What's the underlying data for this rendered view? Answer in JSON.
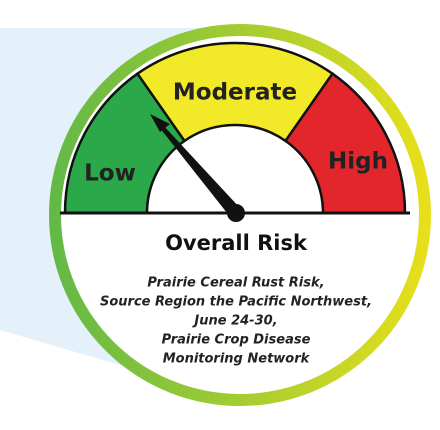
{
  "gauge": {
    "labels": {
      "low": "Low",
      "moderate": "Moderate",
      "high": "High"
    },
    "title": "Overall Risk"
  },
  "caption": [
    "Prairie Cereal Rust Risk,",
    "Source Region the Pacific Northwest,",
    "June 24-30,",
    "Prairie Crop Disease",
    "Monitoring Network"
  ]
}
